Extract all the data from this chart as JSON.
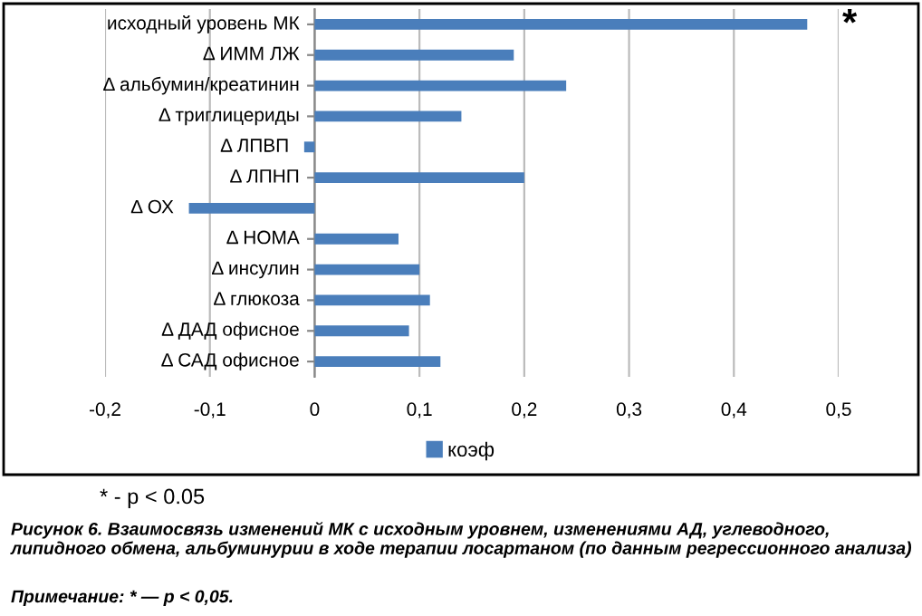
{
  "chart_data": {
    "type": "bar",
    "orientation": "horizontal",
    "categories": [
      "исходный уровень МК",
      "Δ ИММ ЛЖ",
      "Δ альбумин/креатинин",
      "Δ триглицериды",
      "Δ ЛПВП",
      "Δ ЛПНП",
      "Δ ОХ",
      "Δ HOMA",
      "Δ инсулин",
      "Δ глюкоза",
      "Δ ДАД офисное",
      "Δ САД офисное"
    ],
    "series": [
      {
        "name": "коэф",
        "color": "#4a7ebb",
        "values": [
          0.47,
          0.19,
          0.24,
          0.14,
          -0.01,
          0.2,
          -0.12,
          0.08,
          0.1,
          0.11,
          0.09,
          0.12
        ]
      }
    ],
    "xlim": [
      -0.2,
      0.5
    ],
    "xticks": [
      {
        "value": -0.2,
        "label": "-0,2"
      },
      {
        "value": -0.1,
        "label": "-0,1"
      },
      0,
      {
        "value": 0.1,
        "label": "0,1"
      },
      {
        "value": 0.2,
        "label": "0,2"
      },
      {
        "value": 0.3,
        "label": "0,3"
      },
      {
        "value": 0.4,
        "label": "0,4"
      },
      {
        "value": 0.5,
        "label": "0,5"
      }
    ],
    "grid": "x",
    "legend": "bottom",
    "annotations": [
      "*",
      "* - p < 0.05",
      "Рисунок 6. Взаимосвязь изменений МК с исходным уровнем, изменениями АД, углеводного, липидного обмена, альбуминурии в ходе терапии лосартаном (по данным регрессионного анализа)",
      "Примечание: * — p < 0,05."
    ]
  }
}
